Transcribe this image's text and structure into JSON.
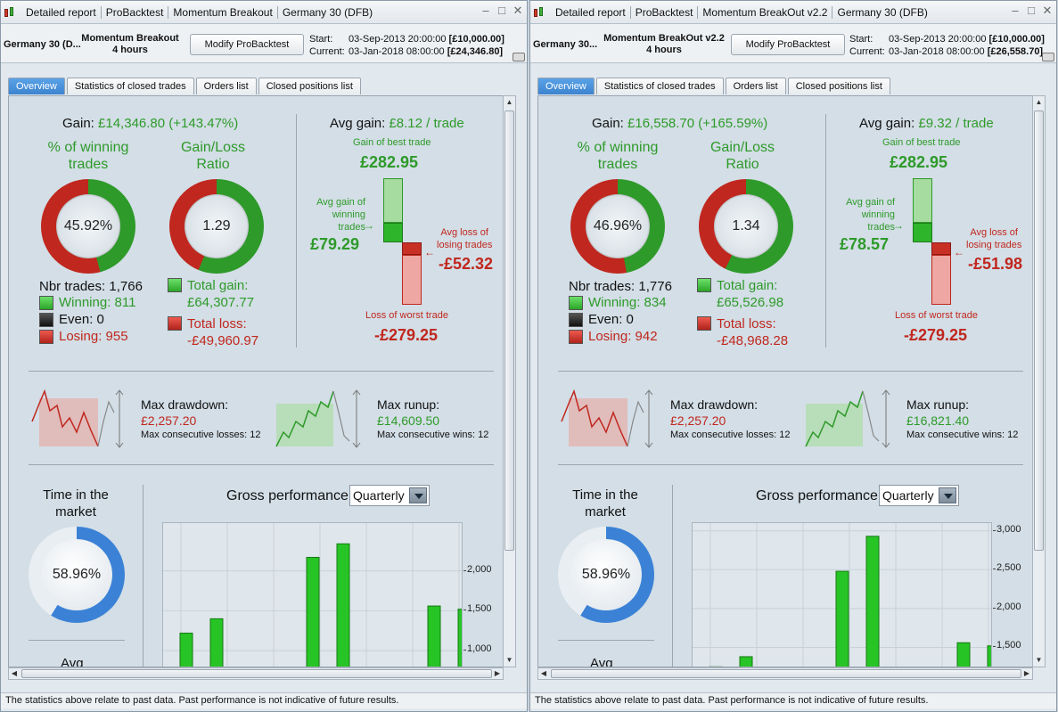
{
  "footer_note": "The statistics above relate to past data. Past performance is not indicative of future results.",
  "colors": {
    "win": "#2e9a2a",
    "loss": "#c0271e",
    "accent_tab": "#3d83cf",
    "time_ring": "#3b82d6"
  },
  "panels": [
    {
      "titlebar": {
        "items": [
          "Detailed report",
          "ProBacktest",
          "Momentum Breakout",
          "Germany 30 (DFB)"
        ]
      },
      "instrument": "Germany 30 (D...",
      "system_name": "Momentum Breakout",
      "timeframe": "4 hours",
      "modify_label": "Modify ProBacktest",
      "start_label": "Start:",
      "current_label": "Current:",
      "start_date": "03-Sep-2013 20:00:00",
      "start_capital": "[£10,000.00]",
      "current_date": "03-Jan-2018 08:00:00",
      "current_capital": "[£24,346.80]",
      "tabs": [
        "Overview",
        "Statistics of closed trades",
        "Orders list",
        "Closed positions list"
      ],
      "gain_label": "Gain:",
      "gain_value": "£14,346.80 (+143.47%)",
      "pct_win_title1": "% of winning",
      "pct_win_title2": "trades",
      "pct_win": "45.92%",
      "pct_win_value": 45.92,
      "gl_title1": "Gain/Loss",
      "gl_title2": "Ratio",
      "gl_ratio": "1.29",
      "gl_fraction": 0.5627,
      "nbr_trades_label": "Nbr trades:",
      "nbr_trades": "1,766",
      "winning_label": "Winning:",
      "winning": "811",
      "even_label": "Even:",
      "even": "0",
      "losing_label": "Losing:",
      "losing": "955",
      "total_gain_label": "Total gain:",
      "total_gain": "£64,307.77",
      "total_loss_label": "Total loss:",
      "total_loss": "-£49,960.97",
      "avg_gain_label": "Avg gain:",
      "avg_gain_value": "£8.12 / trade",
      "best_trade_label": "Gain of best trade",
      "best_trade": "£282.95",
      "avg_win_label1": "Avg gain of",
      "avg_win_label2": "winning",
      "avg_win_label3": "trades",
      "avg_win": "£79.29",
      "avg_loss_label1": "Avg loss of",
      "avg_loss_label2": "losing trades",
      "avg_loss": "-£52.32",
      "worst_trade_label": "Loss of worst trade",
      "worst_trade": "-£279.25",
      "max_dd_label": "Max drawdown:",
      "max_dd": "£2,257.20",
      "max_cons_losses": "Max consecutive losses: 12",
      "max_runup_label": "Max runup:",
      "max_runup": "£14,609.50",
      "max_cons_wins": "Max consecutive wins: 12",
      "time_title1": "Time in the",
      "time_title2": "market",
      "time_in_market": "58.96%",
      "time_fraction": 0.5896,
      "avg_cut_label": "Avg",
      "gross_perf_label": "Gross performance",
      "period_select": "Quarterly",
      "chart_data": {
        "type": "bar",
        "ylim": [
          700,
          2600
        ],
        "yticks": [
          1000,
          1500,
          2000
        ],
        "ytick_labels": [
          "1,000",
          "1,500",
          "2,000"
        ],
        "values": [
          1220,
          1400,
          null,
          null,
          2170,
          2340,
          null,
          null,
          1560,
          1520
        ]
      }
    },
    {
      "titlebar": {
        "items": [
          "Detailed report",
          "ProBacktest",
          "Momentum BreakOut v2.2",
          "Germany 30 (DFB)"
        ]
      },
      "instrument": "Germany 30...",
      "system_name": "Momentum BreakOut v2.2",
      "timeframe": "4 hours",
      "modify_label": "Modify ProBacktest",
      "start_label": "Start:",
      "current_label": "Current:",
      "start_date": "03-Sep-2013 20:00:00",
      "start_capital": "[£10,000.00]",
      "current_date": "03-Jan-2018 08:00:00",
      "current_capital": "[£26,558.70]",
      "tabs": [
        "Overview",
        "Statistics of closed trades",
        "Orders list",
        "Closed positions list"
      ],
      "gain_label": "Gain:",
      "gain_value": "£16,558.70 (+165.59%)",
      "pct_win_title1": "% of winning",
      "pct_win_title2": "trades",
      "pct_win": "46.96%",
      "pct_win_value": 46.96,
      "gl_title1": "Gain/Loss",
      "gl_title2": "Ratio",
      "gl_ratio": "1.34",
      "gl_fraction": 0.5724,
      "nbr_trades_label": "Nbr trades:",
      "nbr_trades": "1,776",
      "winning_label": "Winning:",
      "winning": "834",
      "even_label": "Even:",
      "even": "0",
      "losing_label": "Losing:",
      "losing": "942",
      "total_gain_label": "Total gain:",
      "total_gain": "£65,526.98",
      "total_loss_label": "Total loss:",
      "total_loss": "-£48,968.28",
      "avg_gain_label": "Avg gain:",
      "avg_gain_value": "£9.32 / trade",
      "best_trade_label": "Gain of best trade",
      "best_trade": "£282.95",
      "avg_win_label1": "Avg gain of",
      "avg_win_label2": "winning",
      "avg_win_label3": "trades",
      "avg_win": "£78.57",
      "avg_loss_label1": "Avg loss of",
      "avg_loss_label2": "losing trades",
      "avg_loss": "-£51.98",
      "worst_trade_label": "Loss of worst trade",
      "worst_trade": "-£279.25",
      "max_dd_label": "Max drawdown:",
      "max_dd": "£2,257.20",
      "max_cons_losses": "Max consecutive losses: 12",
      "max_runup_label": "Max runup:",
      "max_runup": "£16,821.40",
      "max_cons_wins": "Max consecutive wins: 12",
      "time_title1": "Time in the",
      "time_title2": "market",
      "time_in_market": "58.96%",
      "time_fraction": 0.5896,
      "avg_cut_label": "Avg",
      "gross_perf_label": "Gross performance",
      "period_select": "Quarterly",
      "chart_data": {
        "type": "bar",
        "ylim": [
          1150,
          3100
        ],
        "yticks": [
          1500,
          2000,
          2500,
          3000
        ],
        "ytick_labels": [
          "1,500",
          "2,000",
          "2,500",
          "3,000"
        ],
        "values": [
          1250,
          1380,
          null,
          null,
          2480,
          2930,
          null,
          null,
          1560,
          1520
        ]
      }
    }
  ]
}
